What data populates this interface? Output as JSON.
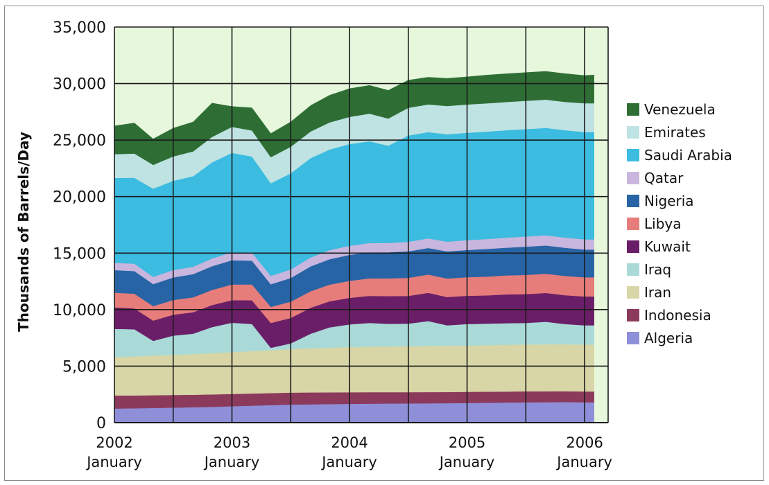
{
  "chart_data": {
    "type": "area",
    "stacked": true,
    "ylabel": "Thousands of Barrels/Day",
    "xlabel": "",
    "ylim": [
      0,
      35000
    ],
    "yticks": [
      "0",
      "5,000",
      "10,000",
      "15,000",
      "20,000",
      "25,000",
      "30,000",
      "35,000"
    ],
    "y_tick_values": [
      0,
      5000,
      10000,
      15000,
      20000,
      25000,
      30000,
      35000
    ],
    "xlim": [
      2002.0,
      2006.2
    ],
    "xticks": [
      {
        "value": 2002,
        "year": "2002",
        "month": "January"
      },
      {
        "value": 2003,
        "year": "2003",
        "month": "January"
      },
      {
        "value": 2004,
        "year": "2004",
        "month": "January"
      },
      {
        "value": 2005,
        "year": "2005",
        "month": "January"
      },
      {
        "value": 2006,
        "year": "2006",
        "month": "January"
      }
    ],
    "grid": true,
    "legend_position": "right",
    "background_color": "#e6f7dc",
    "x": [
      2002.0,
      2002.17,
      2002.33,
      2002.5,
      2002.67,
      2002.83,
      2003.0,
      2003.17,
      2003.33,
      2003.5,
      2003.67,
      2003.83,
      2004.0,
      2004.17,
      2004.33,
      2004.5,
      2004.67,
      2004.83,
      2005.0,
      2005.17,
      2005.33,
      2005.5,
      2005.67,
      2005.83,
      2006.0,
      2006.08
    ],
    "series": [
      {
        "name": "Algeria",
        "color": "#8f8fd9",
        "values": [
          1250,
          1270,
          1300,
          1330,
          1360,
          1400,
          1450,
          1500,
          1550,
          1600,
          1620,
          1640,
          1660,
          1680,
          1690,
          1700,
          1710,
          1720,
          1740,
          1760,
          1780,
          1800,
          1810,
          1820,
          1800,
          1800
        ]
      },
      {
        "name": "Indonesia",
        "color": "#8c3a5c",
        "values": [
          1150,
          1140,
          1130,
          1120,
          1110,
          1100,
          1090,
          1080,
          1070,
          1060,
          1050,
          1040,
          1030,
          1020,
          1010,
          1000,
          995,
          990,
          985,
          980,
          975,
          970,
          965,
          960,
          960,
          960
        ]
      },
      {
        "name": "Iran",
        "color": "#d8d6a6",
        "values": [
          3400,
          3450,
          3500,
          3550,
          3600,
          3650,
          3700,
          3750,
          3800,
          3850,
          3900,
          3950,
          4000,
          4020,
          4040,
          4060,
          4080,
          4100,
          4100,
          4120,
          4140,
          4150,
          4150,
          4150,
          4150,
          4150
        ]
      },
      {
        "name": "Iraq",
        "color": "#a9dad8",
        "values": [
          2500,
          2400,
          1300,
          1700,
          1800,
          2300,
          2600,
          2400,
          200,
          500,
          1300,
          1800,
          2000,
          2100,
          2000,
          2000,
          2200,
          1800,
          1900,
          1900,
          1900,
          1900,
          2000,
          1800,
          1700,
          1700
        ]
      },
      {
        "name": "Kuwait",
        "color": "#6b1e68",
        "values": [
          1900,
          1850,
          1800,
          1850,
          1900,
          1950,
          2000,
          2100,
          2200,
          2250,
          2300,
          2300,
          2350,
          2400,
          2450,
          2450,
          2500,
          2500,
          2500,
          2500,
          2550,
          2550,
          2550,
          2550,
          2550,
          2550
        ]
      },
      {
        "name": "Libya",
        "color": "#e67d7a",
        "values": [
          1300,
          1300,
          1280,
          1300,
          1320,
          1340,
          1380,
          1400,
          1420,
          1440,
          1460,
          1480,
          1500,
          1550,
          1580,
          1600,
          1620,
          1640,
          1650,
          1660,
          1680,
          1700,
          1700,
          1700,
          1700,
          1700
        ]
      },
      {
        "name": "Nigeria",
        "color": "#2764a6",
        "values": [
          2000,
          2000,
          1950,
          2000,
          2050,
          2100,
          2150,
          2100,
          2000,
          2100,
          2200,
          2250,
          2300,
          2300,
          2300,
          2350,
          2350,
          2400,
          2400,
          2450,
          2450,
          2500,
          2500,
          2500,
          2450,
          2450
        ]
      },
      {
        "name": "Qatar",
        "color": "#c8b6de",
        "values": [
          650,
          650,
          640,
          650,
          660,
          680,
          700,
          720,
          740,
          760,
          780,
          800,
          810,
          820,
          830,
          840,
          850,
          860,
          870,
          880,
          890,
          900,
          900,
          900,
          900,
          900
        ]
      },
      {
        "name": "Saudi Arabia",
        "color": "#3bbce0",
        "values": [
          7500,
          7600,
          7800,
          7900,
          8000,
          8500,
          8800,
          8500,
          8200,
          8500,
          8800,
          8900,
          9000,
          9000,
          8600,
          9400,
          9400,
          9500,
          9500,
          9500,
          9500,
          9500,
          9500,
          9500,
          9500,
          9500
        ]
      },
      {
        "name": "Emirates",
        "color": "#bfe3e2",
        "values": [
          2100,
          2150,
          2100,
          2150,
          2200,
          2250,
          2300,
          2300,
          2300,
          2350,
          2350,
          2400,
          2400,
          2450,
          2400,
          2450,
          2450,
          2500,
          2500,
          2500,
          2500,
          2500,
          2500,
          2500,
          2550,
          2550
        ]
      },
      {
        "name": "Venezuela",
        "color": "#2e6e34",
        "values": [
          2500,
          2700,
          2300,
          2500,
          2600,
          3000,
          1800,
          2000,
          2100,
          2200,
          2300,
          2400,
          2500,
          2500,
          2500,
          2450,
          2400,
          2450,
          2450,
          2500,
          2500,
          2500,
          2500,
          2500,
          2450,
          2500
        ]
      }
    ]
  }
}
